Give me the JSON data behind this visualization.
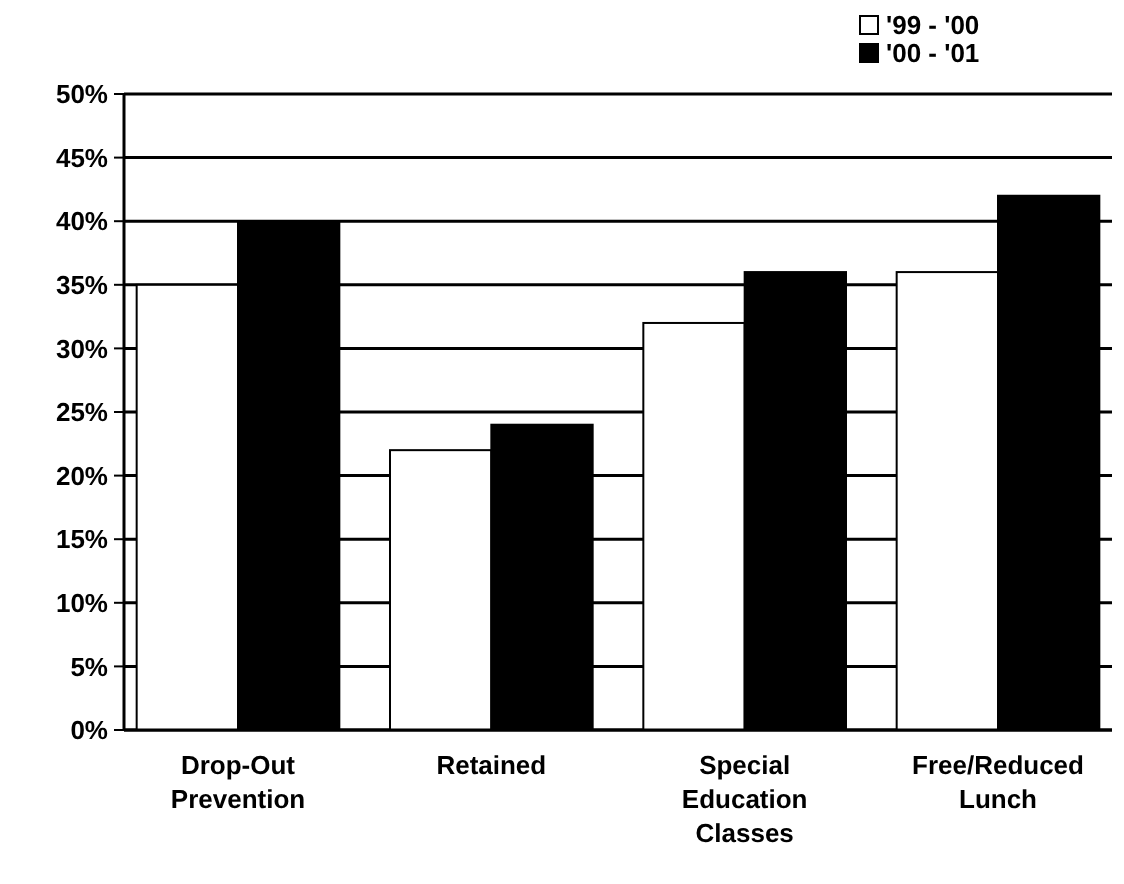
{
  "chart_data": {
    "type": "bar",
    "categories": [
      "Drop-Out Prevention",
      "Retained",
      "Special Education Classes",
      "Free/Reduced Lunch"
    ],
    "series": [
      {
        "name": "'99 - '00",
        "color": "#ffffff",
        "values": [
          35,
          22,
          32,
          36
        ]
      },
      {
        "name": "'00 - '01",
        "color": "#000000",
        "values": [
          40,
          24,
          36,
          42
        ]
      }
    ],
    "ylim": [
      0,
      50
    ],
    "yticks": [
      {
        "value": 0,
        "label": "0%"
      },
      {
        "value": 5,
        "label": "5%"
      },
      {
        "value": 10,
        "label": "10%"
      },
      {
        "value": 15,
        "label": "15%"
      },
      {
        "value": 20,
        "label": "20%"
      },
      {
        "value": 25,
        "label": "25%"
      },
      {
        "value": 30,
        "label": "30%"
      },
      {
        "value": 35,
        "label": "35%"
      },
      {
        "value": 40,
        "label": "40%"
      },
      {
        "value": 45,
        "label": "45%"
      },
      {
        "value": 50,
        "label": "50%"
      }
    ],
    "grid": "y",
    "legend": "top right"
  }
}
